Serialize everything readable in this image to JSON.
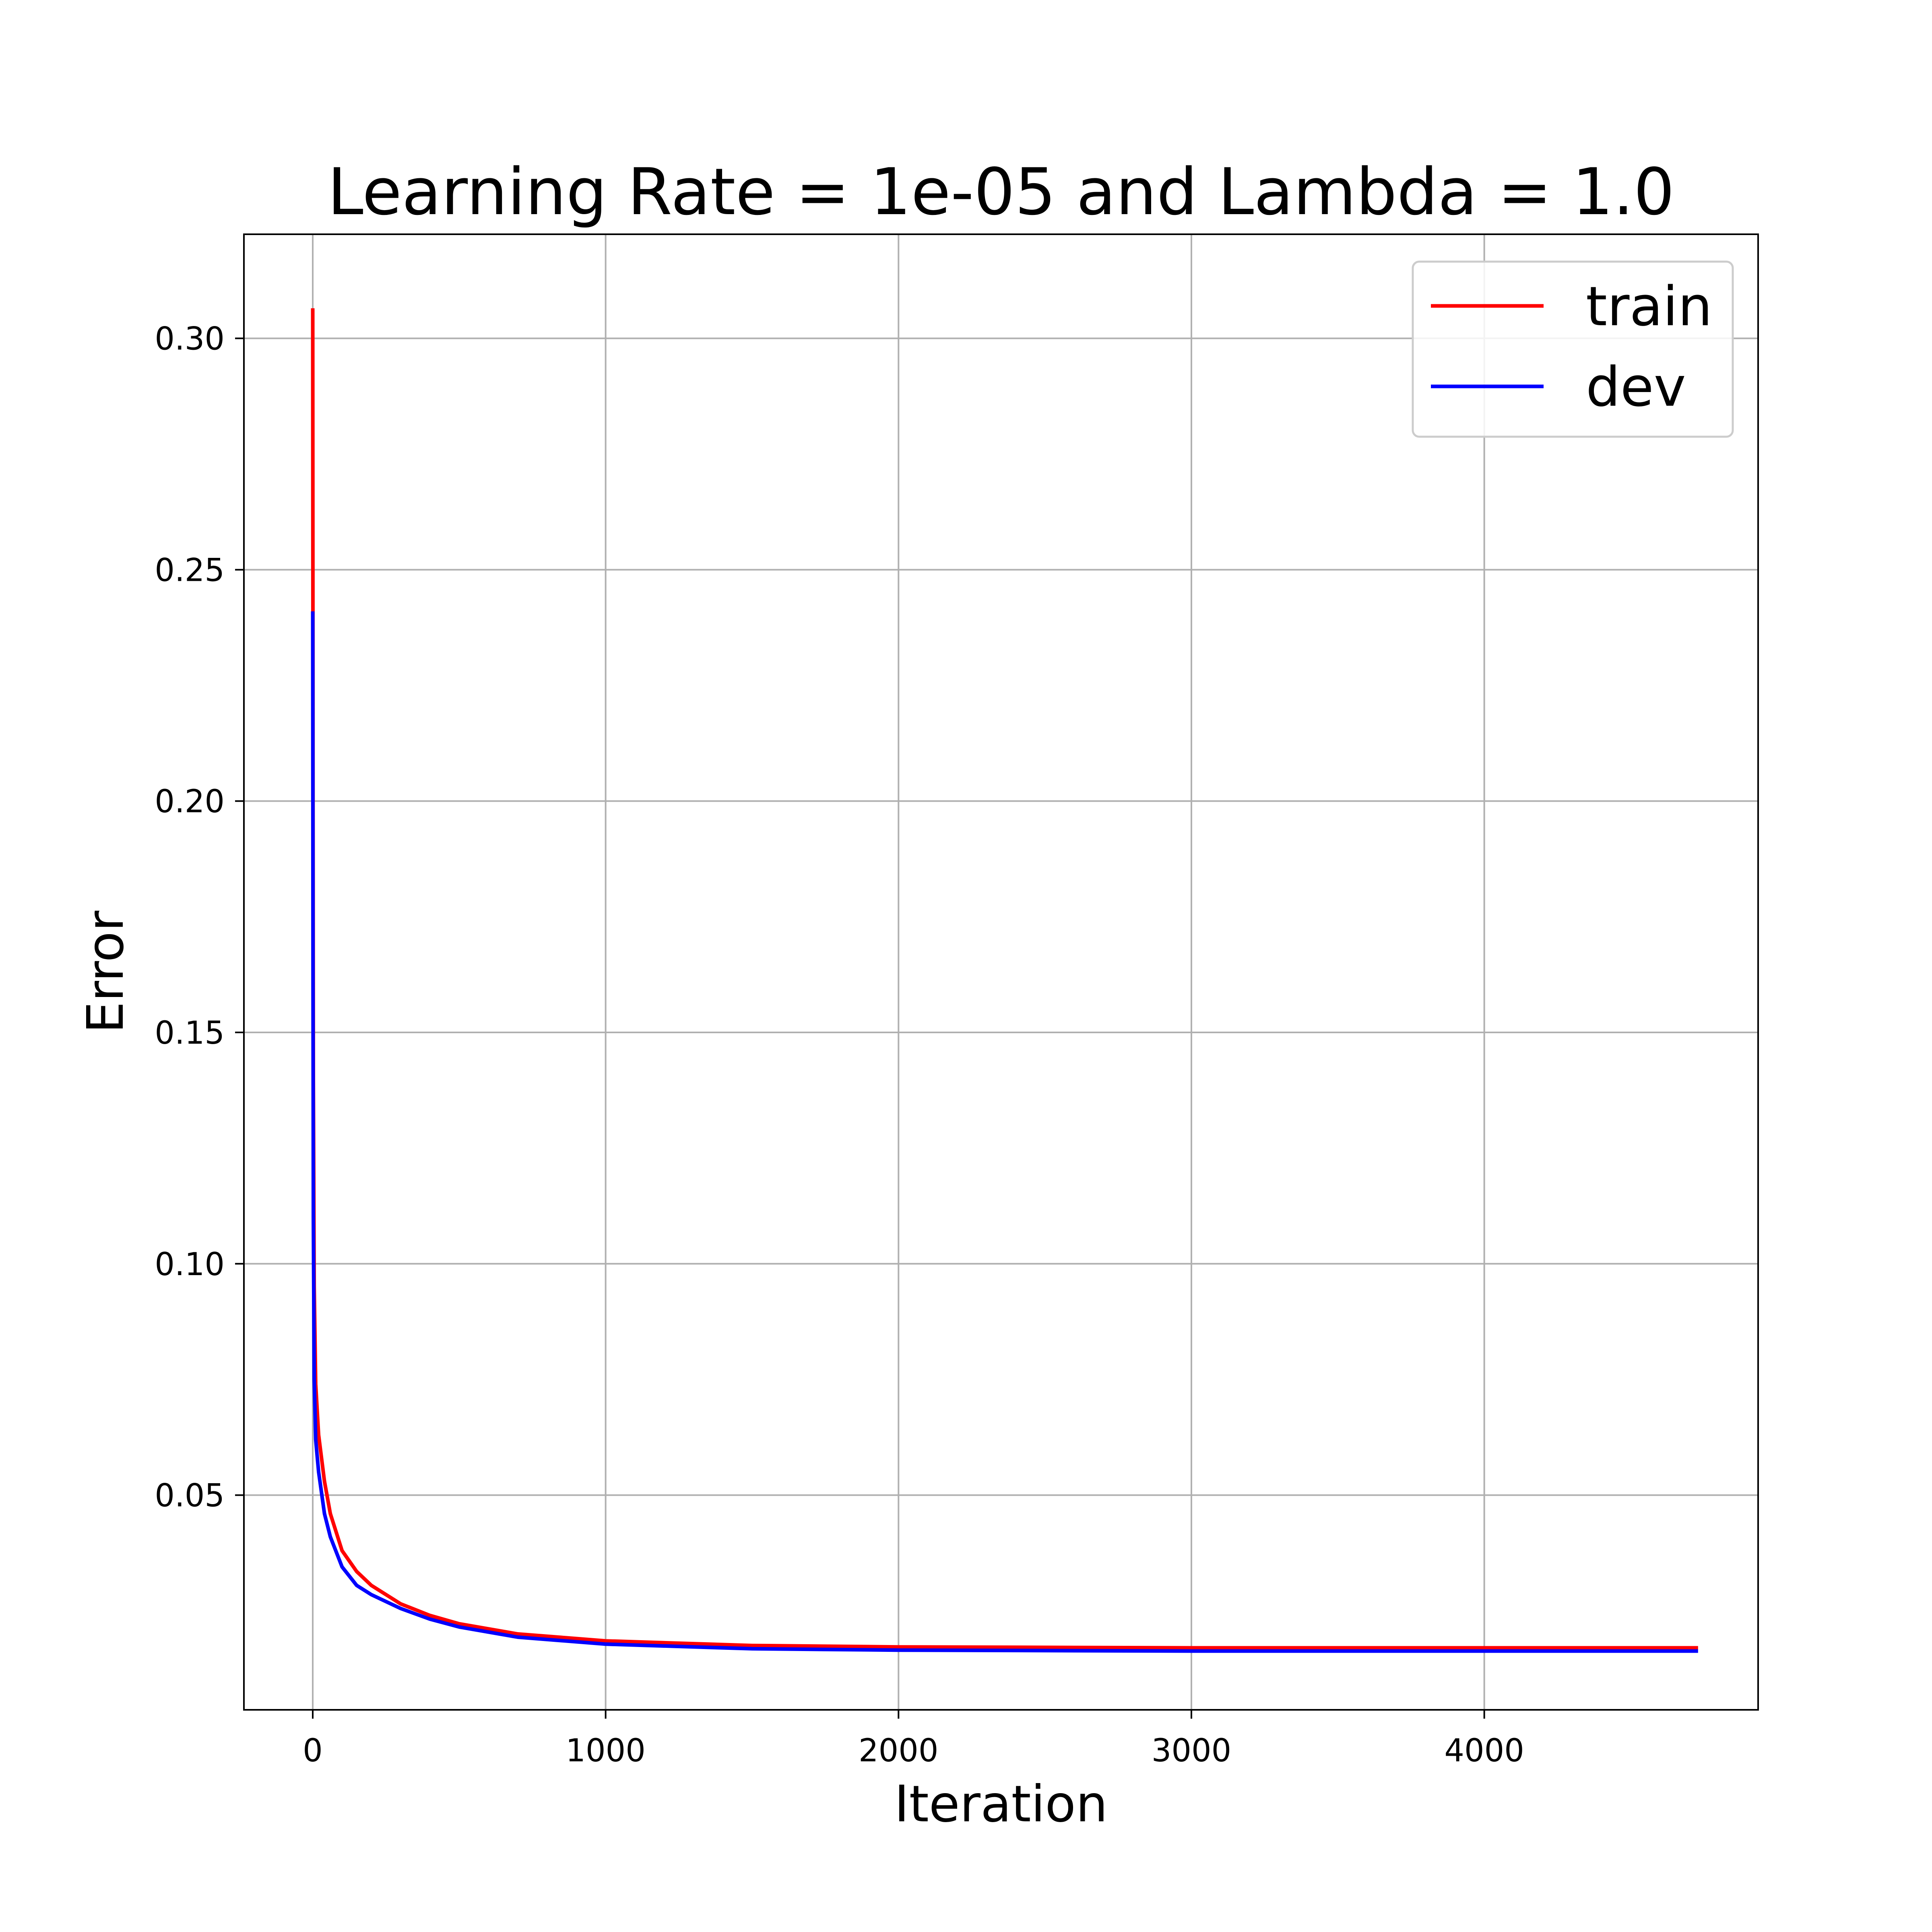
{
  "chart_data": {
    "type": "line",
    "title": "Learning Rate = 1e-05 and Lambda = 1.0",
    "xlabel": "Iteration",
    "ylabel": "Error",
    "xlim": [
      -235,
      4935
    ],
    "ylim": [
      0.0036,
      0.3225
    ],
    "x_ticks": [
      0,
      1000,
      2000,
      3000,
      4000
    ],
    "x_tick_labels": [
      "0",
      "1000",
      "2000",
      "3000",
      "4000"
    ],
    "y_ticks": [
      0.05,
      0.1,
      0.15,
      0.2,
      0.25,
      0.3
    ],
    "y_tick_labels": [
      "0.05",
      "0.10",
      "0.15",
      "0.20",
      "0.25",
      "0.30"
    ],
    "grid": true,
    "legend_position": "top-right",
    "series": [
      {
        "name": "train",
        "color": "#ff0000",
        "x": [
          0,
          1,
          2,
          5,
          10,
          20,
          40,
          60,
          100,
          150,
          200,
          300,
          400,
          500,
          700,
          1000,
          1500,
          2000,
          3000,
          4000,
          4730
        ],
        "y": [
          0.3065,
          0.2,
          0.14,
          0.095,
          0.074,
          0.063,
          0.053,
          0.046,
          0.038,
          0.0335,
          0.0305,
          0.0265,
          0.024,
          0.0222,
          0.02,
          0.0185,
          0.0175,
          0.0172,
          0.017,
          0.017,
          0.017
        ]
      },
      {
        "name": "dev",
        "color": "#0000ff",
        "x": [
          0,
          1,
          2,
          5,
          10,
          20,
          40,
          60,
          100,
          150,
          200,
          300,
          400,
          500,
          700,
          1000,
          1500,
          2000,
          3000,
          4000,
          4730
        ],
        "y": [
          0.241,
          0.16,
          0.11,
          0.075,
          0.062,
          0.055,
          0.046,
          0.041,
          0.0345,
          0.0305,
          0.0285,
          0.0255,
          0.0232,
          0.0215,
          0.0193,
          0.0178,
          0.0168,
          0.0165,
          0.0163,
          0.0163,
          0.0163
        ]
      }
    ]
  }
}
